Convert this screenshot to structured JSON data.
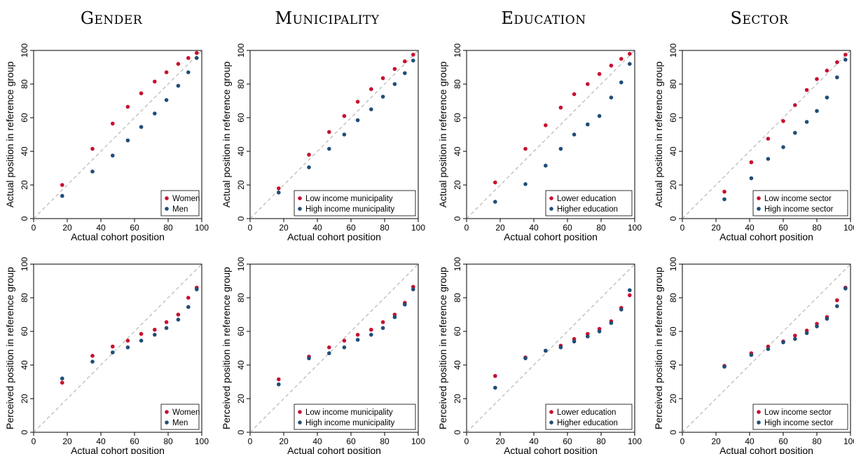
{
  "column_titles": [
    "Gender",
    "Municipality",
    "Education",
    "Sector"
  ],
  "colors": {
    "series1": "#c8102e",
    "series2": "#1f4e79",
    "diagonal": "#a9a9a9"
  },
  "chart_data": [
    {
      "type": "scatter",
      "xlabel": "Actual cohort position",
      "ylabel": "Actual position in reference group",
      "xlim": [
        0,
        100
      ],
      "ylim": [
        0,
        100
      ],
      "xticks": [
        0,
        20,
        40,
        60,
        80,
        100
      ],
      "yticks": [
        0,
        20,
        40,
        60,
        80,
        100
      ],
      "grid": false,
      "diagonal": true,
      "legend": "bottom-right",
      "series": [
        {
          "name": "Women",
          "x": [
            17,
            35,
            47,
            56,
            64,
            72,
            79,
            86,
            92,
            97
          ],
          "y": [
            20,
            41.5,
            56.5,
            66.5,
            74.5,
            81.5,
            87,
            92,
            95.5,
            98.5
          ]
        },
        {
          "name": "Men",
          "x": [
            17,
            35,
            47,
            56,
            64,
            72,
            79,
            86,
            92,
            97
          ],
          "y": [
            13.5,
            28,
            37.5,
            46.5,
            54.5,
            62.5,
            70.5,
            79,
            87,
            95.5
          ]
        }
      ]
    },
    {
      "type": "scatter",
      "xlabel": "Actual cohort position",
      "ylabel": "Actual position in reference group",
      "xlim": [
        0,
        100
      ],
      "ylim": [
        0,
        100
      ],
      "xticks": [
        0,
        20,
        40,
        60,
        80,
        100
      ],
      "yticks": [
        0,
        20,
        40,
        60,
        80,
        100
      ],
      "grid": false,
      "diagonal": true,
      "legend": "bottom-right",
      "series": [
        {
          "name": "Low income municipality",
          "x": [
            17,
            35,
            47,
            56,
            64,
            72,
            79,
            86,
            92,
            97
          ],
          "y": [
            18,
            38,
            51.5,
            61,
            69.5,
            77,
            83.5,
            89,
            93.5,
            97.5
          ]
        },
        {
          "name": "High income municipality",
          "x": [
            17,
            35,
            47,
            56,
            64,
            72,
            79,
            86,
            92,
            97
          ],
          "y": [
            15.5,
            30.5,
            41.5,
            50,
            58.5,
            65,
            72.5,
            80,
            86.5,
            94
          ]
        }
      ]
    },
    {
      "type": "scatter",
      "xlabel": "Actual cohort position",
      "ylabel": "Actual position in reference group",
      "xlim": [
        0,
        100
      ],
      "ylim": [
        0,
        100
      ],
      "xticks": [
        0,
        20,
        40,
        60,
        80,
        100
      ],
      "yticks": [
        0,
        20,
        40,
        60,
        80,
        100
      ],
      "grid": false,
      "diagonal": true,
      "legend": "bottom-right",
      "series": [
        {
          "name": "Lower education",
          "x": [
            17,
            35,
            47,
            56,
            64,
            72,
            79,
            86,
            92,
            97
          ],
          "y": [
            21.5,
            41.5,
            55.5,
            66,
            74,
            80,
            86,
            91,
            95,
            98
          ]
        },
        {
          "name": "Higher education",
          "x": [
            17,
            35,
            47,
            56,
            64,
            72,
            79,
            86,
            92,
            97
          ],
          "y": [
            10,
            20.5,
            31.5,
            41.5,
            50,
            56,
            61,
            72,
            81,
            92
          ]
        }
      ]
    },
    {
      "type": "scatter",
      "xlabel": "Actual cohort position",
      "ylabel": "Actual position in reference group",
      "xlim": [
        0,
        100
      ],
      "ylim": [
        0,
        100
      ],
      "xticks": [
        0,
        20,
        40,
        60,
        80,
        100
      ],
      "yticks": [
        0,
        20,
        40,
        60,
        80,
        100
      ],
      "grid": false,
      "diagonal": true,
      "legend": "bottom-right",
      "series": [
        {
          "name": "Low income sector",
          "x": [
            25,
            41,
            51,
            60,
            67,
            74,
            80,
            86,
            92,
            97
          ],
          "y": [
            16,
            33.5,
            47.5,
            58,
            67.5,
            76.5,
            83,
            88,
            93,
            97.5
          ]
        },
        {
          "name": "High income sector",
          "x": [
            25,
            41,
            51,
            60,
            67,
            74,
            80,
            86,
            92,
            97
          ],
          "y": [
            11.5,
            24,
            35.5,
            42.5,
            51,
            57.5,
            64,
            72,
            84,
            94.5
          ]
        }
      ]
    },
    {
      "type": "scatter",
      "xlabel": "Actual cohort position",
      "ylabel": "Perceived position in reference group",
      "xlim": [
        0,
        100
      ],
      "ylim": [
        0,
        100
      ],
      "xticks": [
        0,
        20,
        40,
        60,
        80,
        100
      ],
      "yticks": [
        0,
        20,
        40,
        60,
        80,
        100
      ],
      "grid": false,
      "diagonal": true,
      "legend": "bottom-right",
      "series": [
        {
          "name": "Women",
          "x": [
            17,
            35,
            47,
            56,
            64,
            72,
            79,
            86,
            92,
            97
          ],
          "y": [
            29.5,
            45.5,
            51,
            54.5,
            58.5,
            61,
            65.5,
            70,
            80,
            86
          ]
        },
        {
          "name": "Men",
          "x": [
            17,
            35,
            47,
            56,
            64,
            72,
            79,
            86,
            92,
            97
          ],
          "y": [
            32,
            42,
            47.5,
            50.5,
            54.5,
            58,
            62,
            67,
            74.5,
            85
          ]
        }
      ]
    },
    {
      "type": "scatter",
      "xlabel": "Actual cohort position",
      "ylabel": "Perceived position in reference group",
      "xlim": [
        0,
        100
      ],
      "ylim": [
        0,
        100
      ],
      "xticks": [
        0,
        20,
        40,
        60,
        80,
        100
      ],
      "yticks": [
        0,
        20,
        40,
        60,
        80,
        100
      ],
      "grid": false,
      "diagonal": true,
      "legend": "bottom-right",
      "series": [
        {
          "name": "Low income municipality",
          "x": [
            17,
            35,
            47,
            56,
            64,
            72,
            79,
            86,
            92,
            97
          ],
          "y": [
            31.5,
            45,
            50.5,
            54.5,
            58,
            61,
            65.5,
            70,
            77,
            86.5
          ]
        },
        {
          "name": "High income municipality",
          "x": [
            17,
            35,
            47,
            56,
            64,
            72,
            79,
            86,
            92,
            97
          ],
          "y": [
            28.5,
            44,
            47,
            50.5,
            55,
            58,
            62,
            68.5,
            76,
            85
          ]
        }
      ]
    },
    {
      "type": "scatter",
      "xlabel": "Actual cohort position",
      "ylabel": "Perceived position in reference group",
      "xlim": [
        0,
        100
      ],
      "ylim": [
        0,
        100
      ],
      "xticks": [
        0,
        20,
        40,
        60,
        80,
        100
      ],
      "yticks": [
        0,
        20,
        40,
        60,
        80,
        100
      ],
      "grid": false,
      "diagonal": true,
      "legend": "bottom-right",
      "series": [
        {
          "name": "Lower education",
          "x": [
            17,
            35,
            47,
            56,
            64,
            72,
            79,
            86,
            92,
            97
          ],
          "y": [
            33.5,
            44.5,
            48.5,
            51.5,
            55.5,
            58.5,
            61.5,
            66,
            74,
            81.5
          ]
        },
        {
          "name": "Higher education",
          "x": [
            17,
            35,
            47,
            56,
            64,
            72,
            79,
            86,
            92,
            97
          ],
          "y": [
            26.5,
            44,
            48.5,
            50.5,
            54,
            57,
            60,
            65,
            73,
            84.5
          ]
        }
      ]
    },
    {
      "type": "scatter",
      "xlabel": "Actual cohort position",
      "ylabel": "Perceived position in reference group",
      "xlim": [
        0,
        100
      ],
      "ylim": [
        0,
        100
      ],
      "xticks": [
        0,
        20,
        40,
        60,
        80,
        100
      ],
      "yticks": [
        0,
        20,
        40,
        60,
        80,
        100
      ],
      "grid": false,
      "diagonal": true,
      "legend": "bottom-right",
      "series": [
        {
          "name": "Low income sector",
          "x": [
            25,
            41,
            51,
            60,
            67,
            74,
            80,
            86,
            92,
            97
          ],
          "y": [
            39.5,
            47,
            51,
            54,
            57.5,
            60.5,
            64.5,
            68.5,
            78.5,
            86
          ]
        },
        {
          "name": "High income sector",
          "x": [
            25,
            41,
            51,
            60,
            67,
            74,
            80,
            86,
            92,
            97
          ],
          "y": [
            39,
            46,
            49.5,
            53.5,
            55.5,
            59,
            63,
            67.5,
            75,
            85.5
          ]
        }
      ]
    }
  ]
}
